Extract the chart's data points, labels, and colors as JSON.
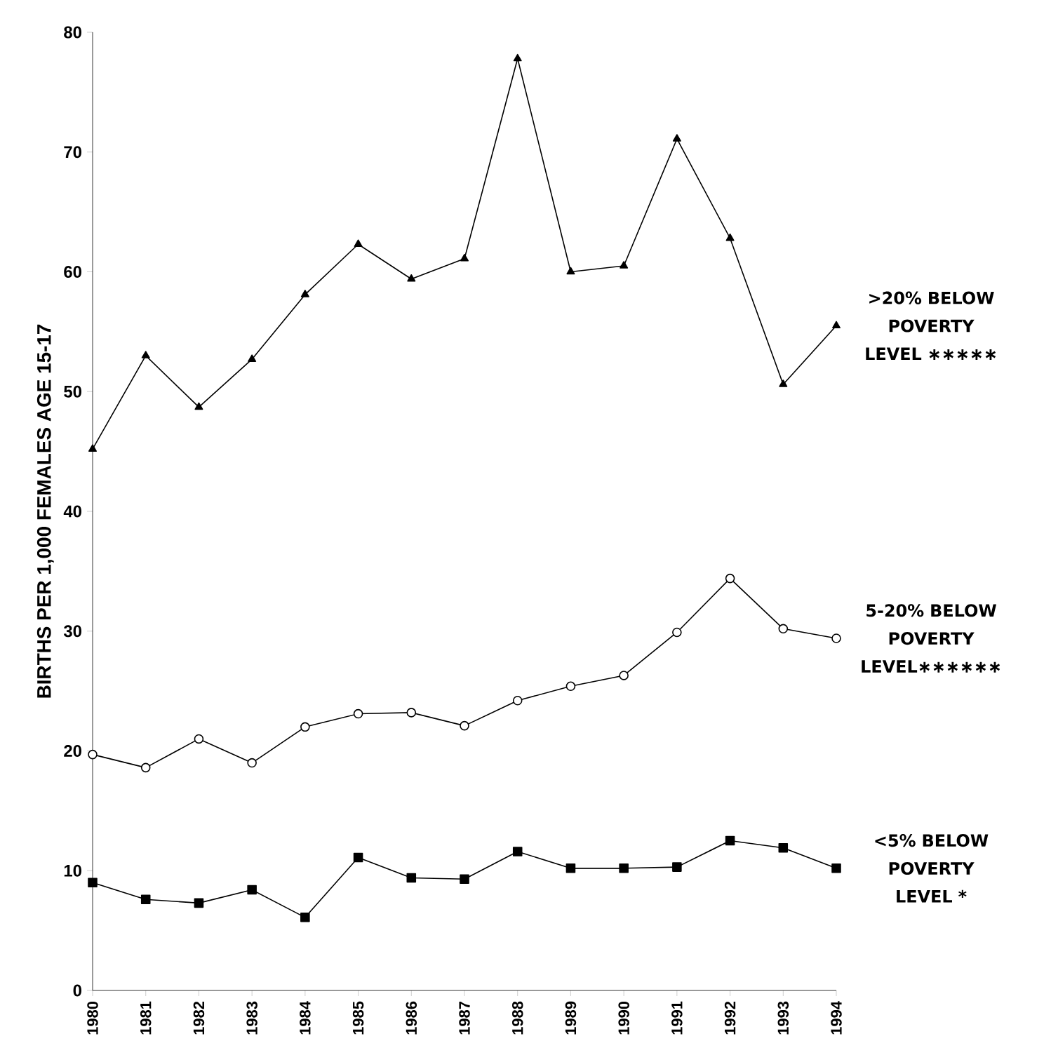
{
  "chart_data": {
    "type": "line",
    "ylabel": "BIRTHS PER 1,000 FEMALES AGE 15-17",
    "categories": [
      "1980",
      "1981",
      "1982",
      "1983",
      "1984",
      "1985",
      "1986",
      "1987",
      "1988",
      "1989",
      "1990",
      "1991",
      "1992",
      "1993",
      "1994"
    ],
    "ylim": [
      0,
      80
    ],
    "yticks": [
      0,
      10,
      20,
      30,
      40,
      50,
      60,
      70,
      80
    ],
    "grid": false,
    "legend": false,
    "series": [
      {
        "name": ">20% BELOW POVERTY LEVEL ∗∗∗∗∗",
        "color": "#000000",
        "marker": "triangle",
        "values": [
          45.2,
          53.0,
          48.7,
          52.7,
          58.1,
          62.3,
          59.4,
          61.1,
          77.8,
          60.0,
          60.5,
          71.1,
          62.8,
          50.6,
          55.5
        ]
      },
      {
        "name": "5-20% BELOW POVERTY LEVEL∗∗∗∗∗∗",
        "color": "#000000",
        "marker": "circle",
        "values": [
          19.7,
          18.6,
          21.0,
          19.0,
          22.0,
          23.1,
          23.2,
          22.1,
          24.2,
          25.4,
          26.3,
          29.9,
          34.4,
          30.2,
          29.4
        ]
      },
      {
        "name": "<5% BELOW POVERTY LEVEL *",
        "color": "#000000",
        "marker": "square",
        "values": [
          9.0,
          7.6,
          7.3,
          8.4,
          6.1,
          11.1,
          9.4,
          9.3,
          11.6,
          10.2,
          10.2,
          10.3,
          12.5,
          11.9,
          10.2
        ]
      }
    ]
  }
}
